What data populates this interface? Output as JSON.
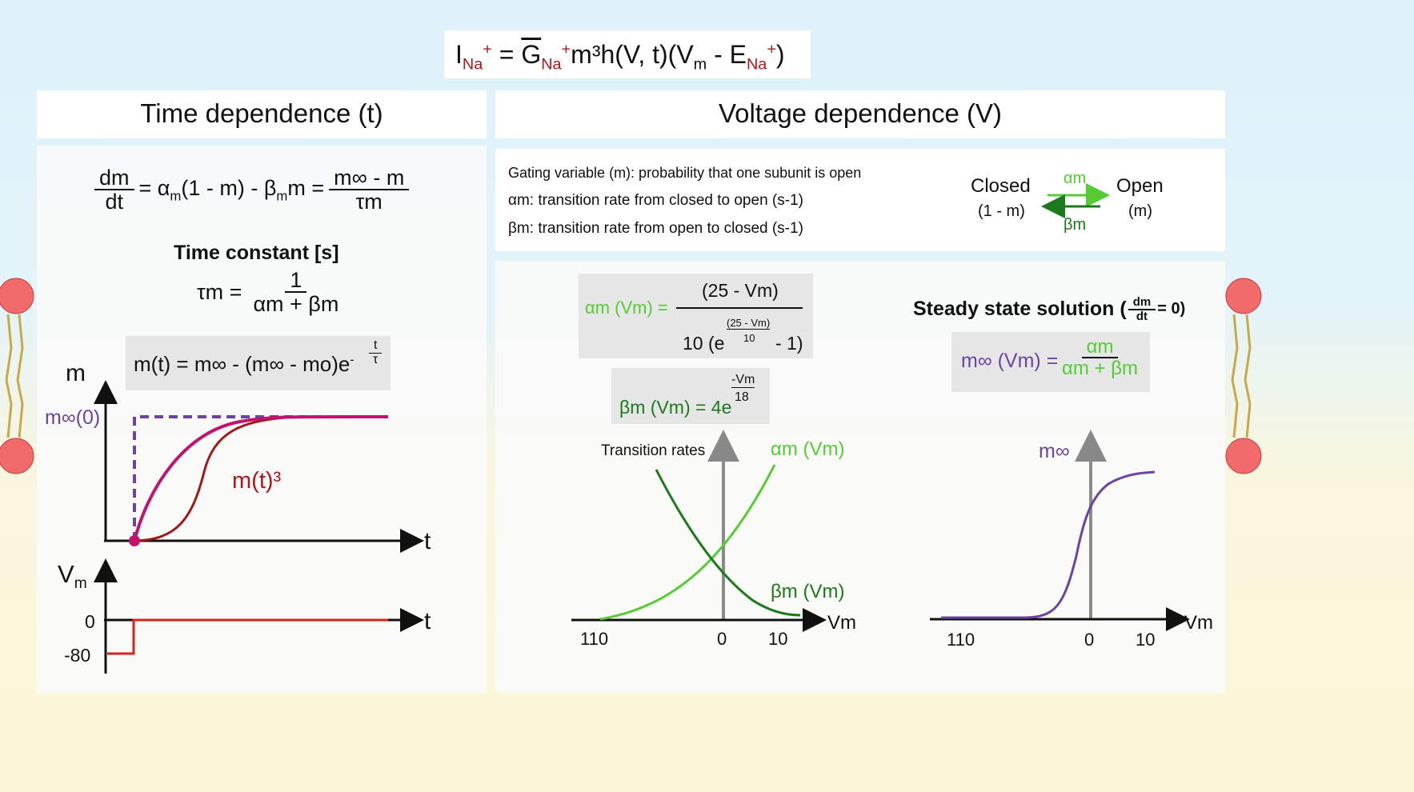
{
  "header_equation": {
    "lhs": "I",
    "lhs_sub": "Na",
    "lhs_sup": "+",
    "eq": "=",
    "g": "G",
    "g_sub": "Na",
    "g_sup": "+",
    "rest": "m³h(V, t)(V",
    "vm_sub": "m",
    "minus": " - E",
    "e_sub": "Na",
    "e_sup": "+",
    "close": ")"
  },
  "left_panel": {
    "title": "Time dependence (t)",
    "ode": {
      "num": "dm",
      "den": "dt",
      "mid": "= α",
      "a_sub": "m",
      "mid2": "(1 - m) - β",
      "b_sub": "m",
      "mid3": "m =",
      "rhs_num": "m∞ - m",
      "rhs_den": "τm"
    },
    "time_constant_heading": "Time constant [s]",
    "tau_eq": {
      "lhs": "τm =",
      "num": "1",
      "den": "αm + βm"
    },
    "mt_eq": {
      "text": "m(t) = m∞ - (m∞ - mo)e",
      "exp_sign": "-",
      "exp_num": "t",
      "exp_den": "τ"
    },
    "plot_top": {
      "y_label": "m",
      "x_label": "t",
      "minf0_label": "m∞(0)",
      "curve_label": "m(t)³"
    },
    "plot_bottom": {
      "y_label": "V",
      "y_sub": "m",
      "x_label": "t",
      "tick_0": "0",
      "tick_80": "-80"
    }
  },
  "right_panel": {
    "title": "Voltage dependence (V)",
    "defs": [
      "Gating variable (m): probability that one subunit is open",
      "αm: transition rate from closed to open (s-1)",
      "βm: transition rate from open to closed (s-1)"
    ],
    "scheme": {
      "closed": "Closed",
      "closed_sub": "(1 - m)",
      "open": "Open",
      "open_sub": "(m)",
      "alpha": "αm",
      "beta": "βm"
    },
    "alpha_eq": {
      "lhs": "αm (Vm) =",
      "num": "(25 - Vm)",
      "den_a": "10 (e",
      "exp_num": "(25 - Vm)",
      "exp_den": "10",
      "den_b": "- 1)"
    },
    "beta_eq": {
      "text": "βm (Vm) = 4e",
      "exp_num": "-Vm",
      "exp_den": "18"
    },
    "steady": {
      "heading": "Steady state solution (",
      "frac_num": "dm",
      "frac_den": "dt",
      "heading_end": "= 0)",
      "lhs": "m∞ (Vm) =",
      "num": "αm",
      "den": "αm + βm"
    },
    "rates_plot": {
      "title": "Transition rates",
      "alpha_label": "αm (Vm)",
      "beta_label": "βm (Vm)",
      "x_label": "Vm",
      "ticks": [
        "110",
        "0",
        "10"
      ]
    },
    "minf_plot": {
      "y_label": "m∞",
      "x_label": "Vm",
      "ticks": [
        "110",
        "0",
        "10"
      ]
    }
  },
  "colors": {
    "alpha": "#55cc33",
    "beta": "#1b7a1b",
    "minf": "#6a44a3",
    "mt": "#c2146e",
    "mt3": "#a01818",
    "vstep": "#d8201c",
    "dashed": "#6a44a3"
  }
}
